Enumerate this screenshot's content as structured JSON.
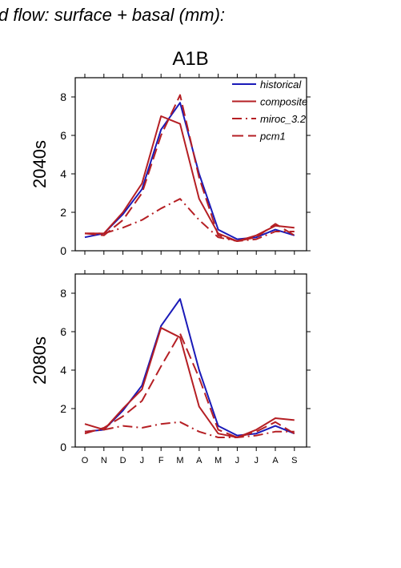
{
  "figure": {
    "header": "d flow: surface + basal (mm):",
    "scenario_title": "A1B"
  },
  "legend": [
    {
      "name": "historical",
      "color": "#1a1ab8",
      "style": "solid"
    },
    {
      "name": "composite",
      "color": "#b51f24",
      "style": "solid"
    },
    {
      "name": "miroc_3.2",
      "color": "#b51f24",
      "style": "dashdot"
    },
    {
      "name": "pcm1",
      "color": "#b51f24",
      "style": "dashed"
    }
  ],
  "chart_data": [
    {
      "type": "line",
      "ylabel": "2040s",
      "ylim": [
        0,
        9
      ],
      "yticks": [
        0,
        2,
        4,
        6,
        8
      ],
      "categories": [
        "O",
        "N",
        "D",
        "J",
        "F",
        "M",
        "A",
        "M",
        "J",
        "J",
        "A",
        "S"
      ],
      "series": [
        {
          "name": "historical",
          "values": [
            0.7,
            0.9,
            1.9,
            3.2,
            6.3,
            7.7,
            4.0,
            1.1,
            0.6,
            0.7,
            1.1,
            0.8
          ]
        },
        {
          "name": "composite",
          "values": [
            0.9,
            0.9,
            2.0,
            3.5,
            7.0,
            6.6,
            2.7,
            0.9,
            0.5,
            0.8,
            1.3,
            1.2
          ]
        },
        {
          "name": "miroc_3.2",
          "values": [
            0.9,
            0.9,
            1.2,
            1.6,
            2.2,
            2.7,
            1.6,
            0.7,
            0.5,
            0.6,
            1.0,
            1.0
          ]
        },
        {
          "name": "pcm1",
          "values": [
            0.9,
            0.8,
            1.6,
            3.0,
            6.0,
            8.1,
            3.8,
            0.8,
            0.5,
            0.7,
            1.4,
            0.8
          ]
        }
      ]
    },
    {
      "type": "line",
      "ylabel": "2080s",
      "ylim": [
        0,
        9
      ],
      "yticks": [
        0,
        2,
        4,
        6,
        8
      ],
      "categories": [
        "O",
        "N",
        "D",
        "J",
        "F",
        "M",
        "A",
        "M",
        "J",
        "J",
        "A",
        "S"
      ],
      "series": [
        {
          "name": "historical",
          "values": [
            0.8,
            0.9,
            1.9,
            3.2,
            6.3,
            7.7,
            4.0,
            1.1,
            0.6,
            0.7,
            1.1,
            0.7
          ]
        },
        {
          "name": "composite",
          "values": [
            1.2,
            0.9,
            2.0,
            3.0,
            6.2,
            5.7,
            2.1,
            0.7,
            0.5,
            0.9,
            1.5,
            1.4
          ]
        },
        {
          "name": "miroc_3.2",
          "values": [
            0.8,
            0.9,
            1.1,
            1.0,
            1.2,
            1.3,
            0.8,
            0.5,
            0.5,
            0.6,
            0.8,
            0.8
          ]
        },
        {
          "name": "pcm1",
          "values": [
            0.7,
            1.0,
            1.6,
            2.4,
            4.2,
            5.9,
            3.6,
            0.9,
            0.5,
            0.8,
            1.3,
            0.7
          ]
        }
      ]
    }
  ]
}
